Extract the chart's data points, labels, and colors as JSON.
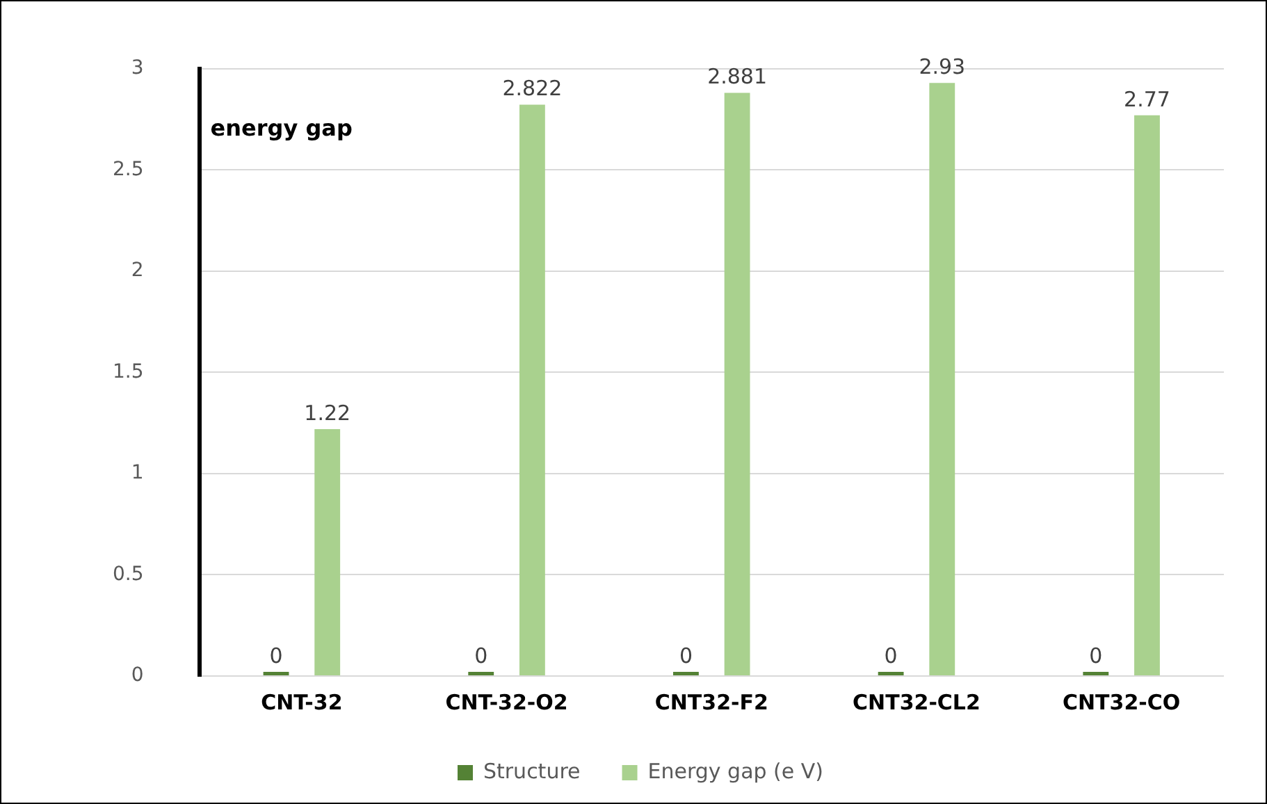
{
  "chart_data": {
    "type": "bar",
    "categories": [
      "CNT-32",
      "CNT-32-O2",
      "CNT32-F2",
      "CNT32-CL2",
      "CNT32-CO"
    ],
    "series": [
      {
        "name": "Structure",
        "color": "#548235",
        "values": [
          0,
          0,
          0,
          0,
          0
        ]
      },
      {
        "name": "Energy gap (e V)",
        "color": "#a9d18e",
        "values": [
          1.22,
          2.822,
          2.881,
          2.93,
          2.77
        ]
      }
    ],
    "ylim": [
      0,
      3
    ],
    "yticks": [
      0,
      0.5,
      1,
      1.5,
      2,
      2.5,
      3
    ],
    "annotations": [
      "energy gap"
    ],
    "data_labels": true,
    "grid": "y",
    "legend": "bottom"
  }
}
